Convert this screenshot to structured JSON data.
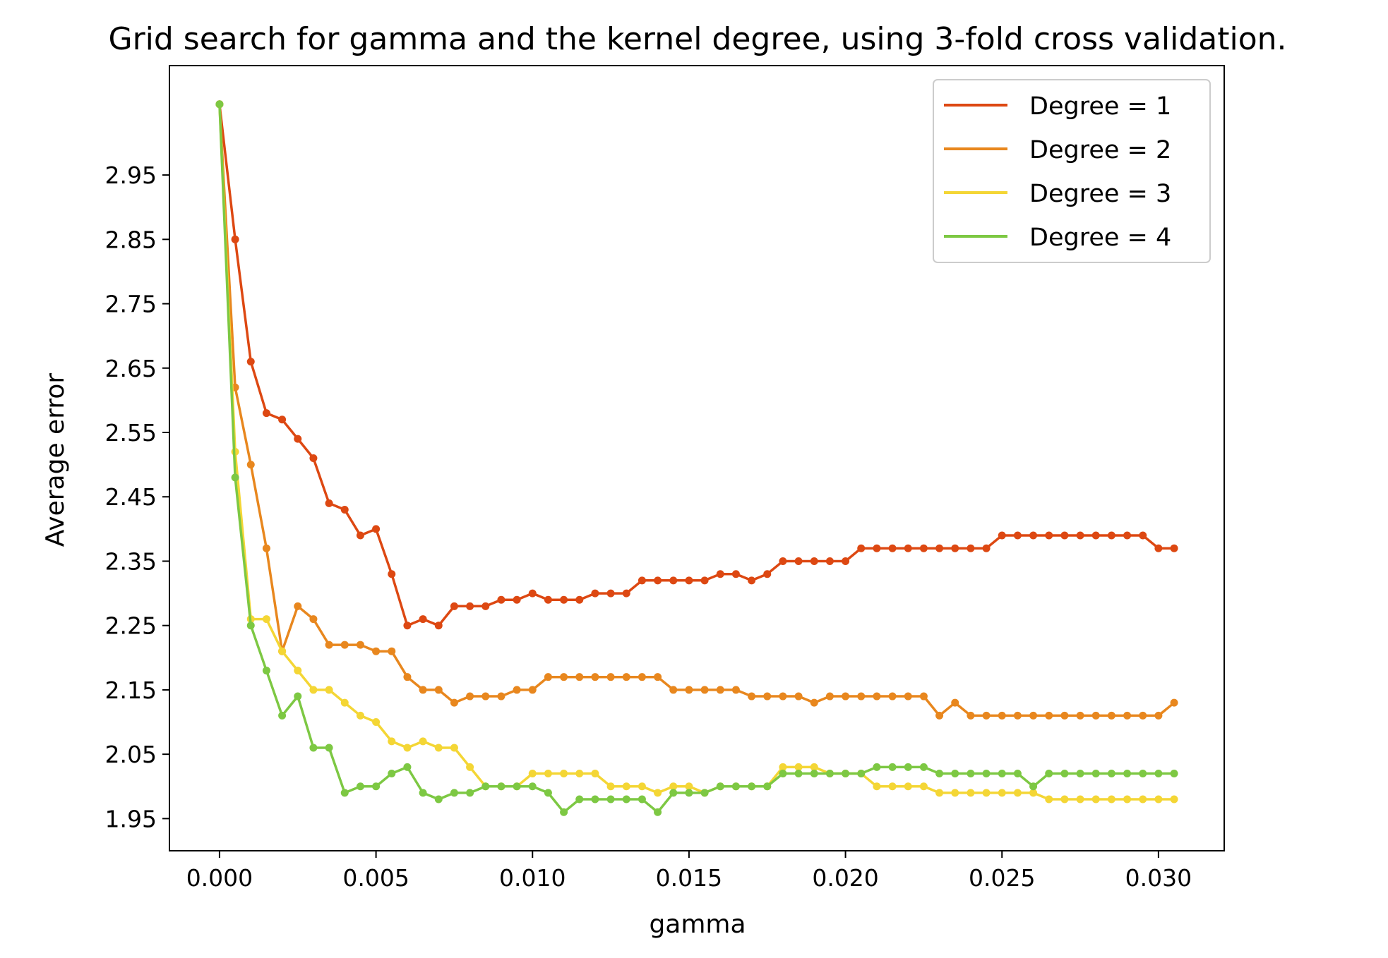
{
  "chart_data": {
    "type": "line",
    "title": "Grid search for gamma and the kernel degree, using 3-fold cross validation.",
    "xlabel": "gamma",
    "ylabel": "Average error",
    "xlim": [
      -0.0016,
      0.0321
    ],
    "ylim": [
      1.9,
      3.12
    ],
    "xticks": [
      0.0,
      0.005,
      0.01,
      0.015,
      0.02,
      0.025,
      0.03
    ],
    "xtick_labels": [
      "0.000",
      "0.005",
      "0.010",
      "0.015",
      "0.020",
      "0.025",
      "0.030"
    ],
    "yticks": [
      1.95,
      2.05,
      2.15,
      2.25,
      2.35,
      2.45,
      2.55,
      2.65,
      2.75,
      2.85,
      2.95
    ],
    "ytick_labels": [
      "1.95",
      "2.05",
      "2.15",
      "2.25",
      "2.35",
      "2.45",
      "2.55",
      "2.65",
      "2.75",
      "2.85",
      "2.95"
    ],
    "grid": false,
    "legend_position": "top-right",
    "x": [
      0.0,
      0.0005,
      0.001,
      0.0015,
      0.002,
      0.0025,
      0.003,
      0.0035,
      0.004,
      0.0045,
      0.005,
      0.0055,
      0.006,
      0.0065,
      0.007,
      0.0075,
      0.008,
      0.0085,
      0.009,
      0.0095,
      0.01,
      0.0105,
      0.011,
      0.0115,
      0.012,
      0.0125,
      0.013,
      0.0135,
      0.014,
      0.0145,
      0.015,
      0.0155,
      0.016,
      0.0165,
      0.017,
      0.0175,
      0.018,
      0.0185,
      0.019,
      0.0195,
      0.02,
      0.0205,
      0.021,
      0.0215,
      0.022,
      0.0225,
      0.023,
      0.0235,
      0.024,
      0.0245,
      0.025,
      0.0255,
      0.026,
      0.0265,
      0.027,
      0.0275,
      0.028,
      0.0285,
      0.029,
      0.0295,
      0.03,
      0.0305
    ],
    "series": [
      {
        "name": "Degree = 1",
        "color": "#dd4812",
        "values": [
          3.06,
          2.85,
          2.66,
          2.58,
          2.57,
          2.54,
          2.51,
          2.44,
          2.43,
          2.39,
          2.4,
          2.33,
          2.25,
          2.26,
          2.25,
          2.28,
          2.28,
          2.28,
          2.29,
          2.29,
          2.3,
          2.29,
          2.29,
          2.29,
          2.3,
          2.3,
          2.3,
          2.32,
          2.32,
          2.32,
          2.32,
          2.32,
          2.33,
          2.33,
          2.32,
          2.33,
          2.35,
          2.35,
          2.35,
          2.35,
          2.35,
          2.37,
          2.37,
          2.37,
          2.37,
          2.37,
          2.37,
          2.37,
          2.37,
          2.37,
          2.39,
          2.39,
          2.39,
          2.39,
          2.39,
          2.39,
          2.39,
          2.39,
          2.39,
          2.39,
          2.37,
          2.37
        ]
      },
      {
        "name": "Degree = 2",
        "color": "#e8871e",
        "values": [
          3.06,
          2.62,
          2.5,
          2.37,
          2.21,
          2.28,
          2.26,
          2.22,
          2.22,
          2.22,
          2.21,
          2.21,
          2.17,
          2.15,
          2.15,
          2.13,
          2.14,
          2.14,
          2.14,
          2.15,
          2.15,
          2.17,
          2.17,
          2.17,
          2.17,
          2.17,
          2.17,
          2.17,
          2.17,
          2.15,
          2.15,
          2.15,
          2.15,
          2.15,
          2.14,
          2.14,
          2.14,
          2.14,
          2.13,
          2.14,
          2.14,
          2.14,
          2.14,
          2.14,
          2.14,
          2.14,
          2.11,
          2.13,
          2.11,
          2.11,
          2.11,
          2.11,
          2.11,
          2.11,
          2.11,
          2.11,
          2.11,
          2.11,
          2.11,
          2.11,
          2.11,
          2.13
        ]
      },
      {
        "name": "Degree = 3",
        "color": "#f4d635",
        "values": [
          3.06,
          2.52,
          2.26,
          2.26,
          2.21,
          2.18,
          2.15,
          2.15,
          2.13,
          2.11,
          2.1,
          2.07,
          2.06,
          2.07,
          2.06,
          2.06,
          2.03,
          2.0,
          2.0,
          2.0,
          2.02,
          2.02,
          2.02,
          2.02,
          2.02,
          2.0,
          2.0,
          2.0,
          1.99,
          2.0,
          2.0,
          1.99,
          2.0,
          2.0,
          2.0,
          2.0,
          2.03,
          2.03,
          2.03,
          2.02,
          2.02,
          2.02,
          2.0,
          2.0,
          2.0,
          2.0,
          1.99,
          1.99,
          1.99,
          1.99,
          1.99,
          1.99,
          1.99,
          1.98,
          1.98,
          1.98,
          1.98,
          1.98,
          1.98,
          1.98,
          1.98,
          1.98
        ]
      },
      {
        "name": "Degree = 4",
        "color": "#7dc843",
        "values": [
          3.06,
          2.48,
          2.25,
          2.18,
          2.11,
          2.14,
          2.06,
          2.06,
          1.99,
          2.0,
          2.0,
          2.02,
          2.03,
          1.99,
          1.98,
          1.99,
          1.99,
          2.0,
          2.0,
          2.0,
          2.0,
          1.99,
          1.96,
          1.98,
          1.98,
          1.98,
          1.98,
          1.98,
          1.96,
          1.99,
          1.99,
          1.99,
          2.0,
          2.0,
          2.0,
          2.0,
          2.02,
          2.02,
          2.02,
          2.02,
          2.02,
          2.02,
          2.03,
          2.03,
          2.03,
          2.03,
          2.02,
          2.02,
          2.02,
          2.02,
          2.02,
          2.02,
          2.0,
          2.02,
          2.02,
          2.02,
          2.02,
          2.02,
          2.02,
          2.02,
          2.02,
          2.02
        ]
      }
    ]
  }
}
